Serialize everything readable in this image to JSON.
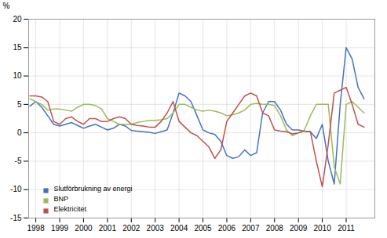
{
  "chart_data": {
    "type": "line",
    "ylabel": "%",
    "x": [
      1997.75,
      1998.0,
      1998.25,
      1998.5,
      1998.75,
      1999.0,
      1999.25,
      1999.5,
      1999.75,
      2000.0,
      2000.25,
      2000.5,
      2000.75,
      2001.0,
      2001.25,
      2001.5,
      2001.75,
      2002.0,
      2002.25,
      2002.5,
      2002.75,
      2003.0,
      2003.25,
      2003.5,
      2003.75,
      2004.0,
      2004.25,
      2004.5,
      2004.75,
      2005.0,
      2005.25,
      2005.5,
      2005.75,
      2006.0,
      2006.25,
      2006.5,
      2006.75,
      2007.0,
      2007.25,
      2007.5,
      2007.75,
      2008.0,
      2008.25,
      2008.5,
      2008.75,
      2009.0,
      2009.25,
      2009.5,
      2009.75,
      2010.0,
      2010.25,
      2010.5,
      2010.75,
      2011.0,
      2011.25,
      2011.5,
      2011.75
    ],
    "series": [
      {
        "name": "Slutförbrukning av energi",
        "color": "#4472c4",
        "values": [
          4.7,
          5.5,
          4.5,
          3.0,
          1.5,
          1.2,
          1.5,
          1.8,
          1.3,
          0.8,
          1.2,
          1.5,
          1.0,
          0.5,
          0.8,
          1.5,
          1.2,
          0.4,
          0.3,
          0.2,
          0.1,
          -0.1,
          0.2,
          0.5,
          3.5,
          7.0,
          6.5,
          5.5,
          3.0,
          0.5,
          0.0,
          -0.3,
          -1.5,
          -4.0,
          -4.5,
          -4.2,
          -3.0,
          -4.0,
          -3.5,
          3.5,
          5.5,
          5.5,
          4.0,
          1.5,
          0.5,
          0.5,
          0.3,
          0.2,
          -1.0,
          1.5,
          -5.0,
          -9.0,
          5.0,
          15.0,
          13.0,
          8.0,
          6.0
        ]
      },
      {
        "name": "BNP",
        "color": "#9bbb59",
        "values": [
          6.0,
          5.5,
          5.0,
          4.0,
          4.2,
          4.2,
          4.0,
          3.8,
          4.5,
          5.0,
          5.0,
          4.8,
          4.2,
          2.5,
          2.0,
          1.5,
          1.5,
          1.5,
          1.8,
          2.0,
          2.2,
          2.2,
          2.3,
          2.5,
          3.5,
          5.0,
          5.0,
          4.5,
          4.0,
          3.8,
          4.0,
          3.8,
          3.5,
          3.0,
          3.2,
          3.5,
          4.0,
          5.0,
          5.2,
          5.0,
          5.0,
          4.8,
          3.0,
          0.5,
          -0.5,
          0.0,
          0.5,
          3.0,
          5.0,
          5.0,
          5.0,
          -6.0,
          -9.0,
          5.0,
          5.5,
          4.5,
          3.5
        ]
      },
      {
        "name": "Elektricitet",
        "color": "#c0504d",
        "values": [
          6.5,
          6.5,
          6.3,
          5.5,
          2.0,
          1.5,
          2.5,
          2.8,
          2.0,
          1.5,
          2.5,
          2.5,
          2.0,
          2.0,
          2.5,
          2.8,
          2.5,
          1.5,
          1.3,
          1.2,
          1.0,
          1.0,
          2.0,
          3.5,
          5.5,
          2.0,
          1.0,
          0.0,
          -0.5,
          -1.5,
          -2.5,
          -4.5,
          -3.0,
          2.0,
          3.5,
          5.0,
          6.5,
          7.0,
          6.5,
          3.5,
          3.0,
          0.5,
          0.3,
          0.2,
          -0.2,
          0.0,
          0.3,
          0.2,
          -5.0,
          -9.5,
          -2.0,
          7.0,
          7.5,
          8.0,
          5.0,
          1.5,
          1.0
        ]
      }
    ],
    "xlim": [
      1997.7,
      2012.2
    ],
    "ylim": [
      -15,
      20
    ],
    "xticks": [
      1998,
      1999,
      2000,
      2001,
      2002,
      2003,
      2004,
      2005,
      2006,
      2007,
      2008,
      2009,
      2010,
      2011
    ],
    "yticks": [
      -15,
      -10,
      -5,
      0,
      5,
      10,
      15,
      20
    ],
    "grid": true,
    "legend": "lower left"
  }
}
